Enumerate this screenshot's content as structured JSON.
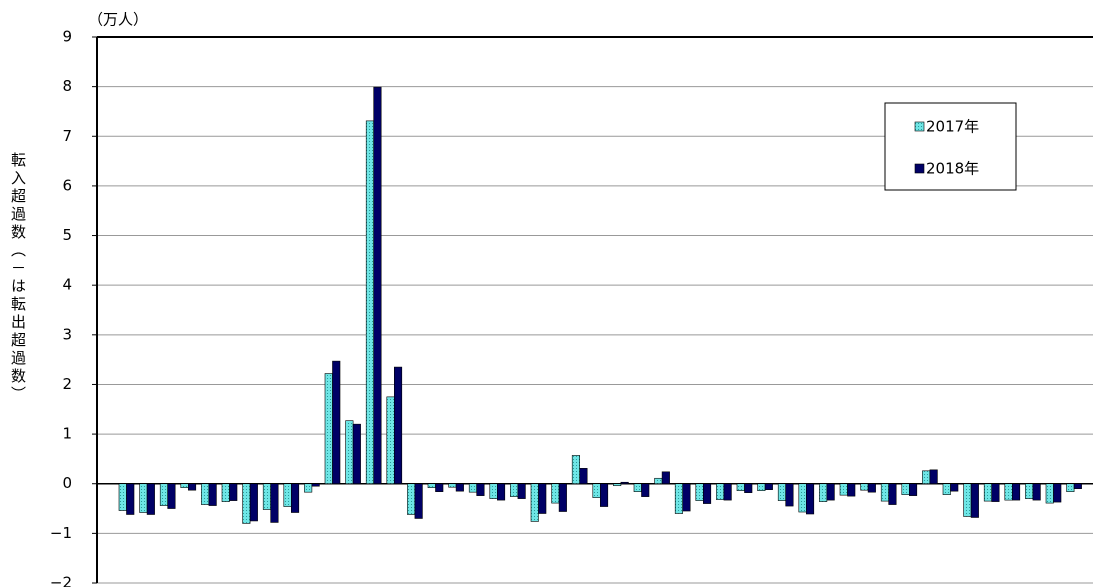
{
  "chart_data": {
    "type": "bar",
    "unit_label": "（万人）",
    "y_axis_title": "転入超過数（－は転出超過数）",
    "categories": [
      null,
      null,
      null,
      null,
      null,
      null,
      null,
      null,
      null,
      null,
      null,
      null,
      null,
      null,
      null,
      null,
      null,
      null,
      null,
      null,
      null,
      null,
      null,
      null,
      null,
      null,
      null,
      null,
      null,
      null,
      null,
      null,
      null,
      null,
      null,
      null,
      null,
      null,
      null,
      null,
      null,
      null,
      null,
      null,
      null,
      null,
      null
    ],
    "series": [
      {
        "name": "2017年",
        "color": "#6ee6e6",
        "values": [
          -0.54,
          -0.58,
          -0.44,
          -0.08,
          -0.42,
          -0.36,
          -0.8,
          -0.52,
          -0.46,
          -0.17,
          2.22,
          1.27,
          7.31,
          1.75,
          -0.62,
          -0.08,
          -0.07,
          -0.17,
          -0.3,
          -0.26,
          -0.76,
          -0.39,
          0.57,
          -0.28,
          -0.04,
          -0.16,
          0.11,
          -0.6,
          -0.34,
          -0.32,
          -0.14,
          -0.14,
          -0.34,
          -0.57,
          -0.36,
          -0.23,
          -0.13,
          -0.35,
          -0.22,
          0.26,
          -0.22,
          -0.66,
          -0.35,
          -0.33,
          -0.3,
          -0.39,
          -0.16
        ]
      },
      {
        "name": "2018年",
        "color": "#000066",
        "values": [
          -0.62,
          -0.62,
          -0.5,
          -0.13,
          -0.44,
          -0.34,
          -0.75,
          -0.78,
          -0.58,
          -0.05,
          2.47,
          1.2,
          7.99,
          2.35,
          -0.7,
          -0.16,
          -0.15,
          -0.24,
          -0.33,
          -0.3,
          -0.6,
          -0.56,
          0.31,
          -0.46,
          0.03,
          -0.26,
          0.24,
          -0.55,
          -0.4,
          -0.33,
          -0.18,
          -0.12,
          -0.45,
          -0.61,
          -0.33,
          -0.25,
          -0.17,
          -0.42,
          -0.24,
          0.28,
          -0.15,
          -0.68,
          -0.36,
          -0.33,
          -0.33,
          -0.37,
          -0.1
        ]
      }
    ],
    "ylim": [
      -2,
      9
    ],
    "yticks": [
      {
        "value": -2,
        "label": "−2"
      },
      {
        "value": -1,
        "label": "−1"
      },
      0,
      1,
      2,
      3,
      4,
      5,
      6,
      7,
      8,
      9
    ],
    "grid": true,
    "legend_position": "upper right"
  }
}
